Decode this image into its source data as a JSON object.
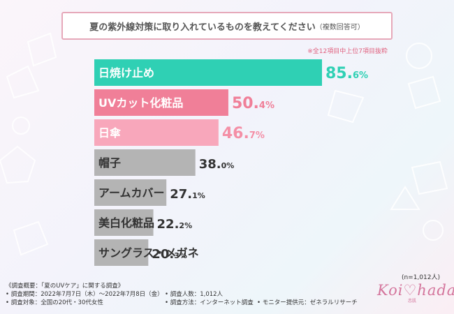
{
  "header": {
    "question": "夏の紫外線対策に取り入れているものを教えてください",
    "question_note": "（複数回答可）",
    "scope_note": "※全12項目中上位7項目抜粋"
  },
  "chart_data": {
    "type": "bar",
    "orientation": "horizontal",
    "categories": [
      "日焼け止め",
      "UVカット化粧品",
      "日傘",
      "帽子",
      "アームカバー",
      "美白化粧品",
      "サングラス・メガネ"
    ],
    "values": [
      85.6,
      50.4,
      46.7,
      38.0,
      27.1,
      22.2,
      20.3
    ],
    "value_labels": [
      {
        "int": "85.",
        "dec": "6",
        "unit": "%"
      },
      {
        "int": "50.",
        "dec": "4",
        "unit": "%"
      },
      {
        "int": "46.",
        "dec": "7",
        "unit": "%"
      },
      {
        "int": "38.",
        "dec": "0",
        "unit": "%"
      },
      {
        "int": "27.",
        "dec": "1",
        "unit": "%"
      },
      {
        "int": "22.",
        "dec": "2",
        "unit": "%"
      },
      {
        "int": "20.",
        "dec": "3",
        "unit": "%"
      }
    ],
    "bar_colors": [
      "#2fd0b4",
      "#f07f98",
      "#f8a7bb",
      "#b4b4b4",
      "#b4b4b4",
      "#b4b4b4",
      "#b4b4b4"
    ],
    "label_colors": [
      "#2fd0b4",
      "#f07f98",
      "#f48fa6",
      "#333333",
      "#333333",
      "#333333",
      "#333333"
    ],
    "category_text_colors": [
      "#ffffff",
      "#ffffff",
      "#ffffff",
      "#333333",
      "#333333",
      "#333333",
      "#333333"
    ],
    "xlim": [
      0,
      100
    ],
    "grid": false,
    "legend": "none"
  },
  "sample_size": "(n=1,012人)",
  "footer": {
    "line1": "《調査概要：「夏のUVケア」に関する調査》",
    "period": "• 調査期間：2022年7月7日（木）〜2022年7月8日（金）",
    "target": "• 調査対象：全国の20代・30代女性",
    "count": "• 調査人数：1,012人",
    "method": "• 調査方法：インターネット調査",
    "provider": "• モニター提供元：ゼネラルリサーチ"
  },
  "logo": {
    "text": "Koi♡hada",
    "sub": "恋肌"
  },
  "colors": {
    "accent_pink": "#e6a8b9",
    "teal": "#2fd0b4",
    "pink": "#f07f98",
    "gray": "#b4b4b4"
  }
}
